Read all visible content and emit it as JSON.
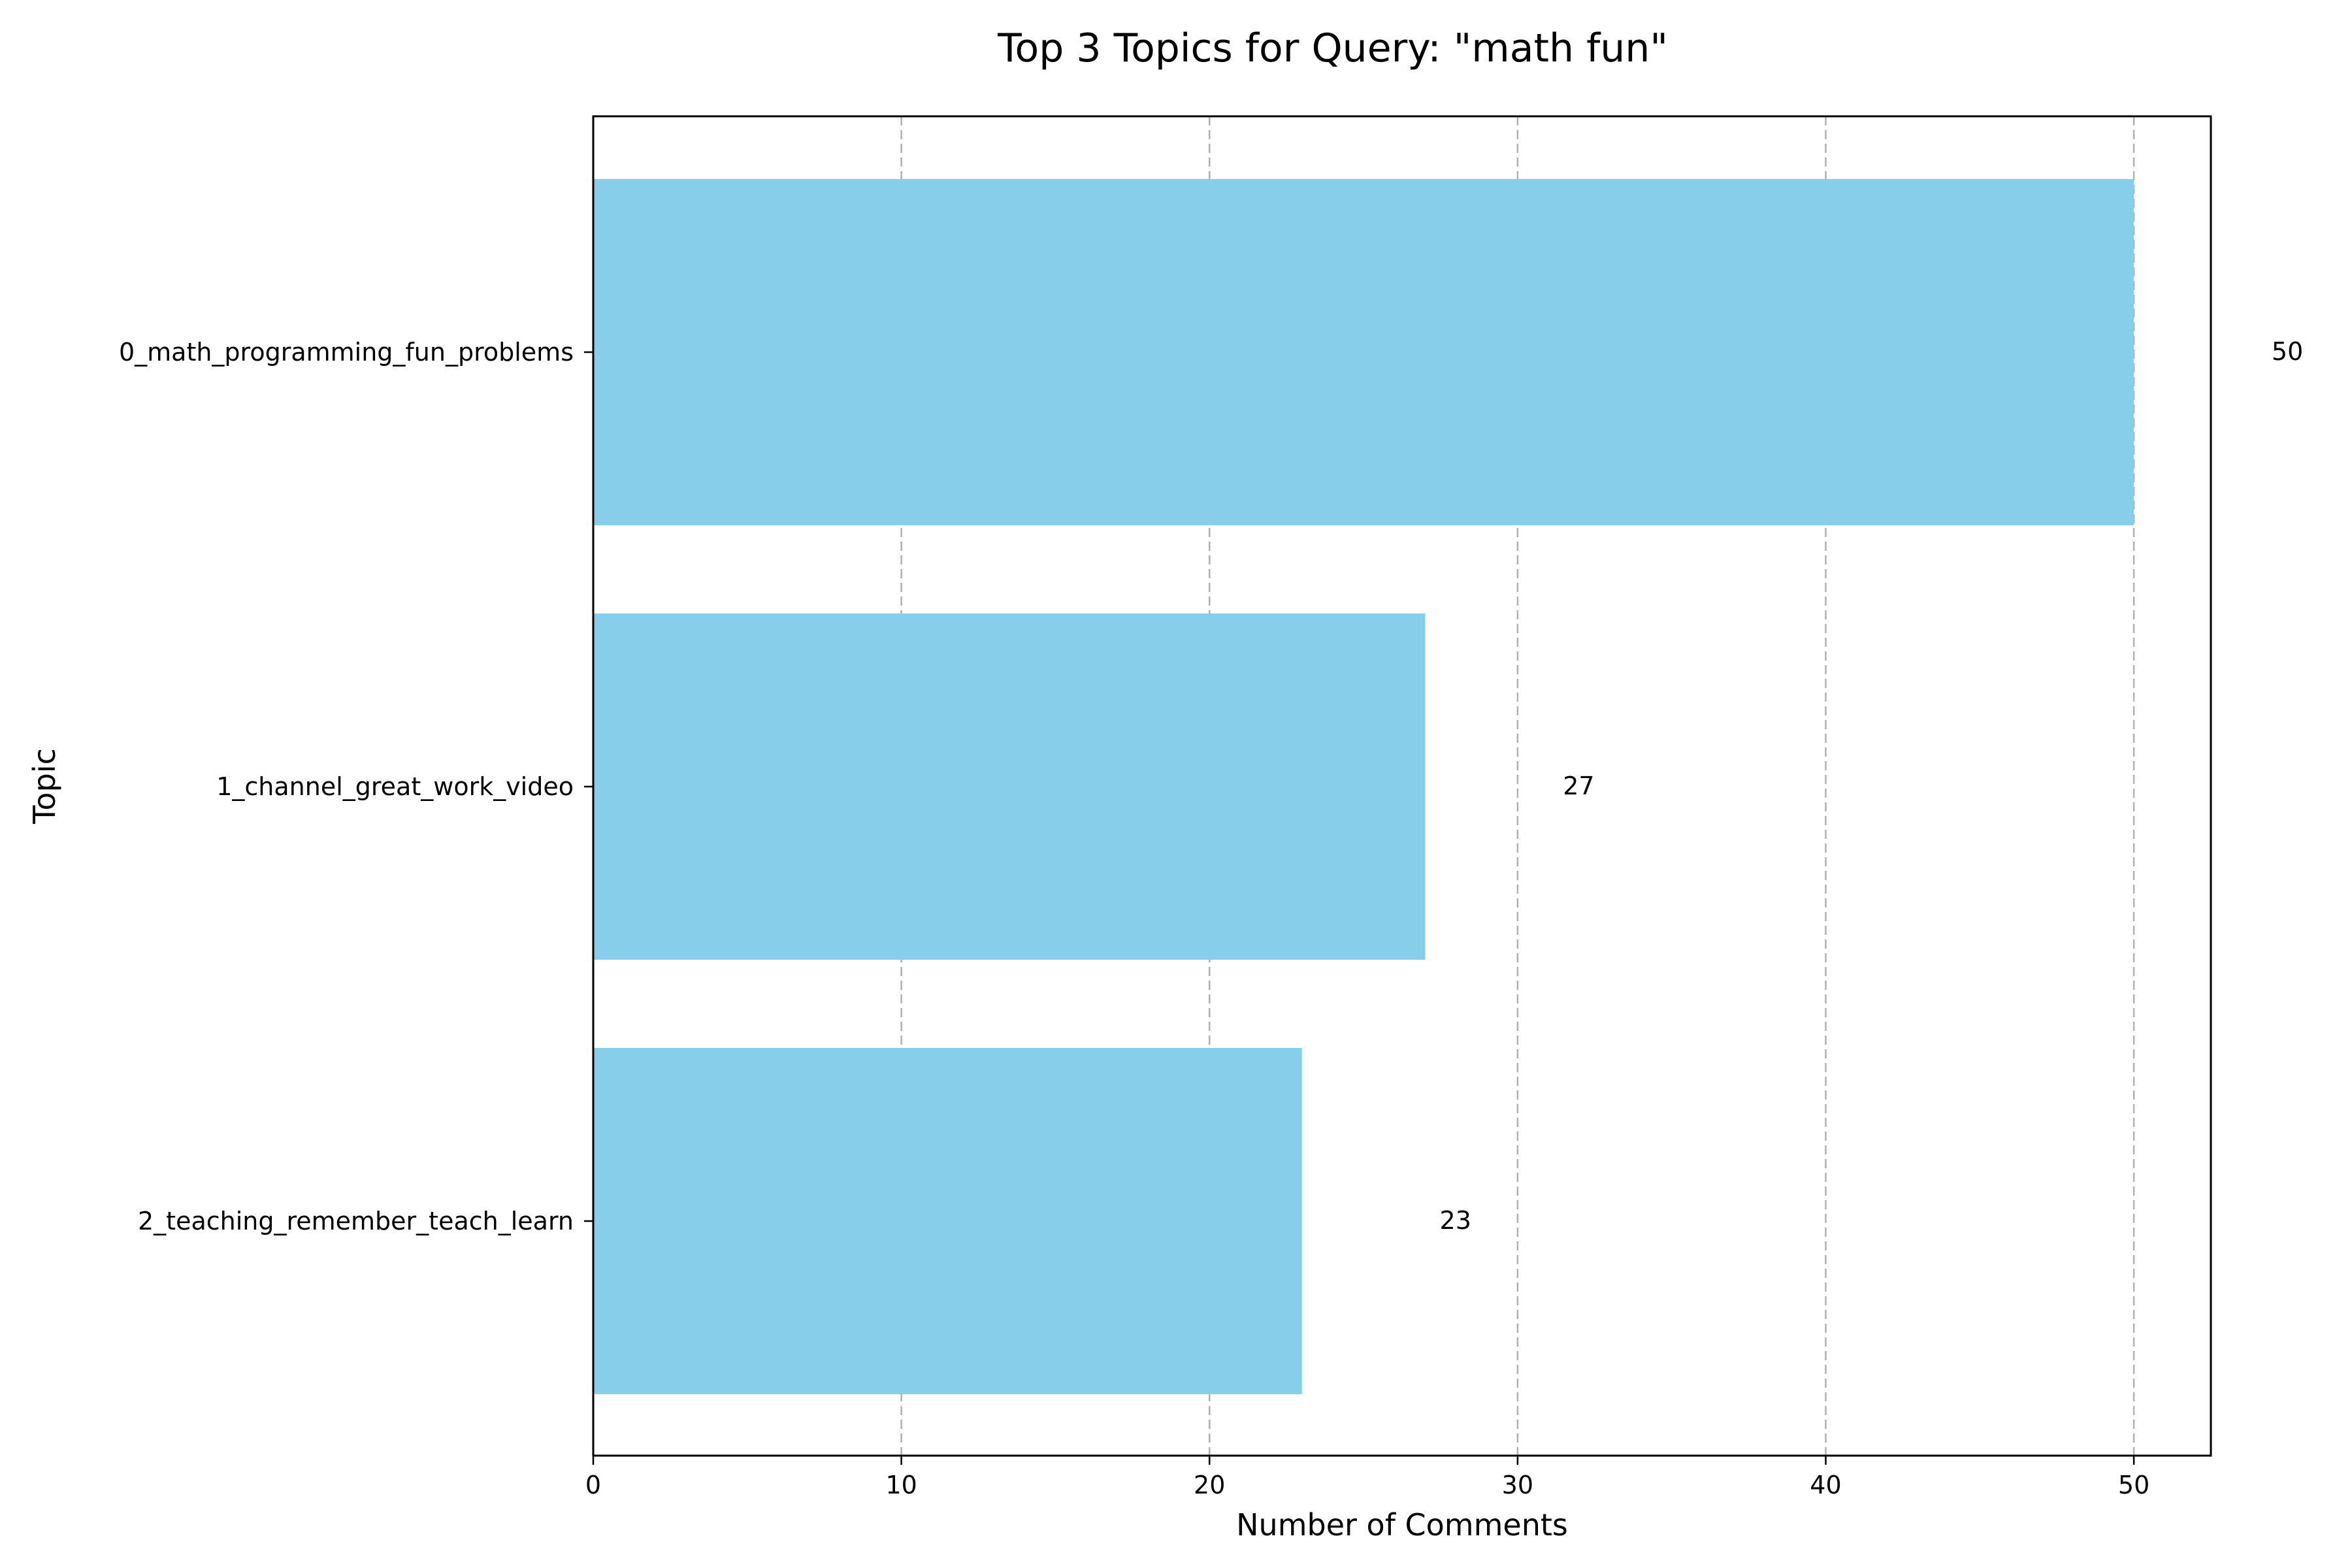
{
  "chart_data": {
    "type": "bar",
    "orientation": "horizontal",
    "title": "Top 3 Topics for Query: \"math fun\"",
    "xlabel": "Number of Comments",
    "ylabel": "Topic",
    "categories": [
      "0_math_programming_fun_problems",
      "1_channel_great_work_video",
      "2_teaching_remember_teach_learn"
    ],
    "values": [
      50,
      27,
      23
    ],
    "value_labels": [
      "50",
      "27",
      "23"
    ],
    "xlim": [
      0,
      52.5
    ],
    "xticks": [
      0,
      10,
      20,
      30,
      40,
      50
    ],
    "xtick_labels": [
      "0",
      "10",
      "20",
      "30",
      "40",
      "50"
    ],
    "grid": "x-axis dashed",
    "bar_color": "#87CEEB",
    "legend": "none"
  }
}
